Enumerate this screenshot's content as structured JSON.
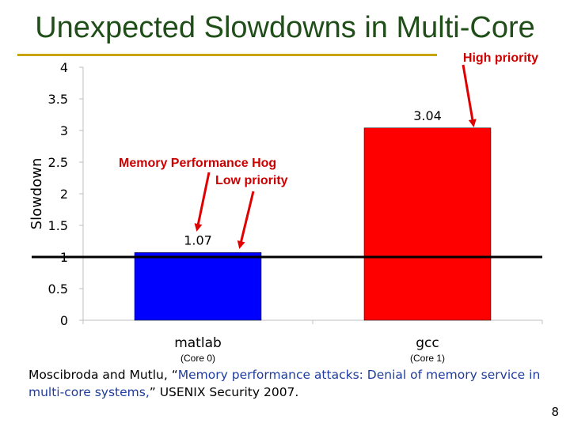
{
  "slide": {
    "title": "Unexpected Slowdowns in Multi-Core",
    "page_number": "8",
    "citation": {
      "authors": "Moscibroda and Mutlu, “",
      "paper_title": "Memory performance attacks: Denial of memory service in multi-core systems,",
      "venue": "” USENIX Security 2007."
    }
  },
  "annotations": {
    "high_priority": "High priority",
    "memory_hog": "Memory Performance Hog",
    "low_priority": "Low priority"
  },
  "chart_data": {
    "type": "bar",
    "categories": [
      "matlab",
      "gcc"
    ],
    "category_sublabels": [
      "(Core 0)",
      "(Core 1)"
    ],
    "values": [
      1.07,
      3.04
    ],
    "value_labels": [
      "1.07",
      "3.04"
    ],
    "bar_colors": [
      "#0000ff",
      "#ff0000"
    ],
    "ylabel": "Slowdown",
    "xlabel": "",
    "ylim": [
      0,
      4
    ],
    "yticks": [
      0,
      0.5,
      1,
      1.5,
      2,
      2.5,
      3,
      3.5,
      4
    ],
    "ytick_labels": [
      "0",
      "0.5",
      "1",
      "1.5",
      "2",
      "2.5",
      "3",
      "3.5",
      "4"
    ],
    "reference_line": 1,
    "grid": false
  }
}
